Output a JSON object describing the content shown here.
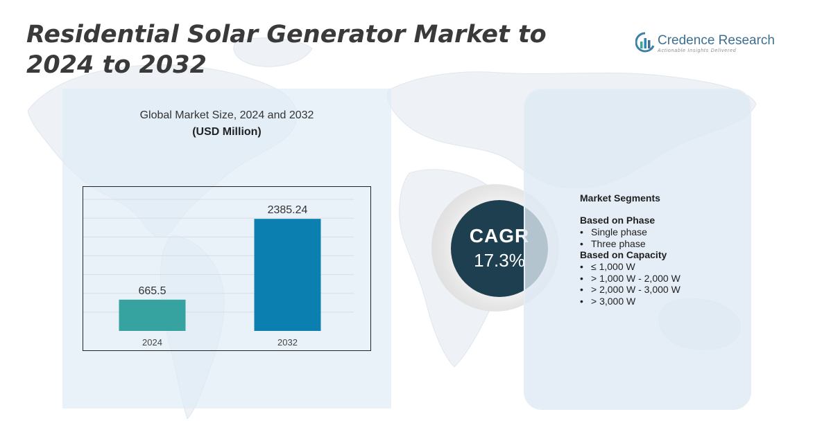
{
  "title": "Residential Solar Generator Market to 2024 to 2032",
  "logo": {
    "name": "Credence Research",
    "tagline": "Actionable Insights Delivered",
    "icon": "credence-logo-icon"
  },
  "panel": {
    "title": "Global Market Size, 2024 and 2032",
    "unit": "(USD Million)"
  },
  "chart_data": {
    "type": "bar",
    "title": "Global Market Size, 2024 and 2032",
    "ylabel": "(USD Million)",
    "xlabel": "",
    "categories": [
      "2024",
      "2032"
    ],
    "values": [
      665.5,
      2385.24
    ],
    "value_labels": [
      "665.5",
      "2385.24"
    ],
    "colors": [
      "#36a3a0",
      "#0b7fb0"
    ],
    "ylim": [
      0,
      2800
    ],
    "grid": true
  },
  "cagr": {
    "label": "CAGR",
    "value": "17.3%"
  },
  "segments": {
    "title": "Market Segments",
    "groups": [
      {
        "heading": "Based on Phase",
        "items": [
          "Single phase",
          "Three phase"
        ]
      },
      {
        "heading": "Based on Capacity",
        "items": [
          "≤ 1,000 W",
          "> 1,000 W - 2,000 W",
          "> 2,000 W - 3,000 W",
          "> 3,000 W"
        ]
      }
    ]
  }
}
